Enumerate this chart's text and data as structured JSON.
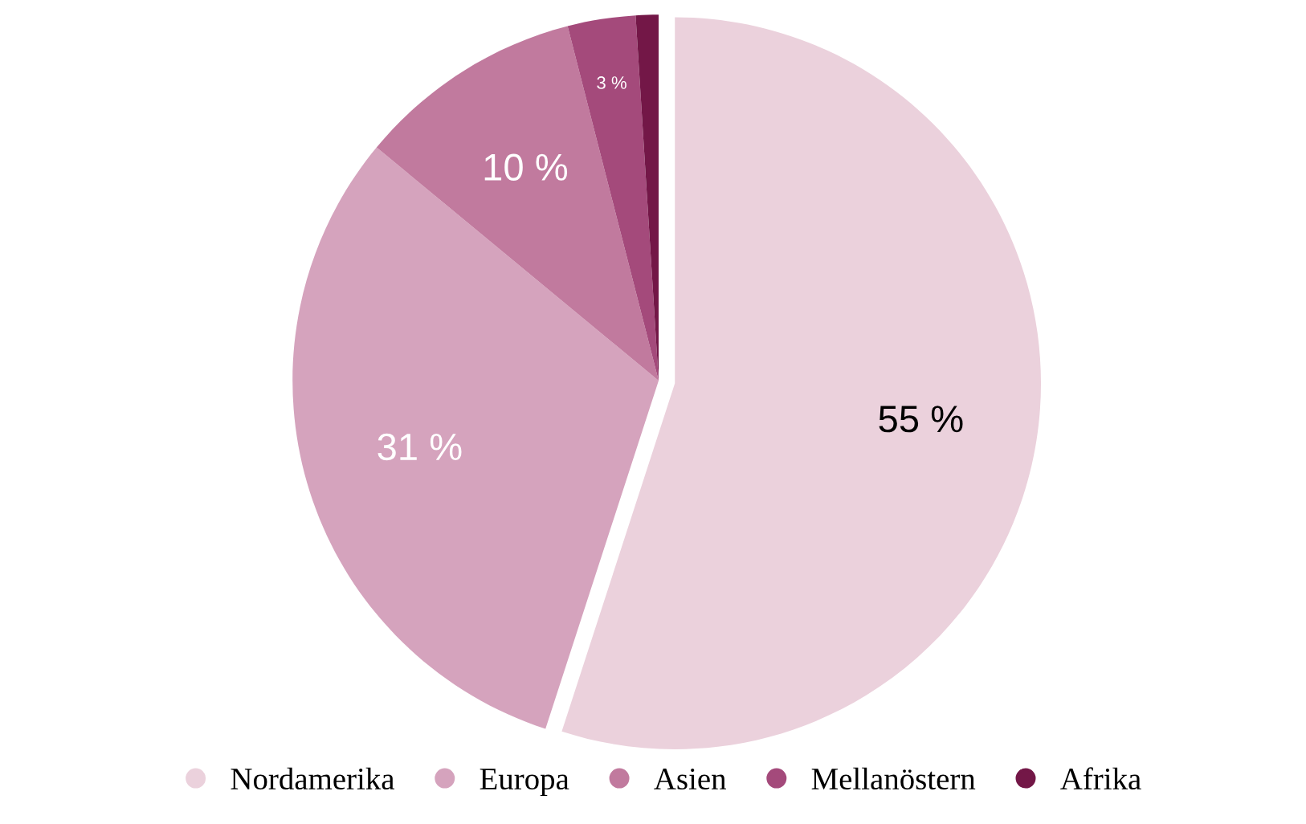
{
  "chart_data": {
    "type": "pie",
    "categories": [
      "Nordamerika",
      "Europa",
      "Asien",
      "Mellanöstern",
      "Afrika"
    ],
    "values": [
      55,
      31,
      10,
      3,
      1
    ],
    "colors": [
      "#ebd1dc",
      "#d5a3bd",
      "#c17a9e",
      "#a44a7b",
      "#731747"
    ],
    "value_labels": [
      "55 %",
      "31 %",
      "10 %",
      "3 %",
      null
    ],
    "legend": "bottom"
  }
}
